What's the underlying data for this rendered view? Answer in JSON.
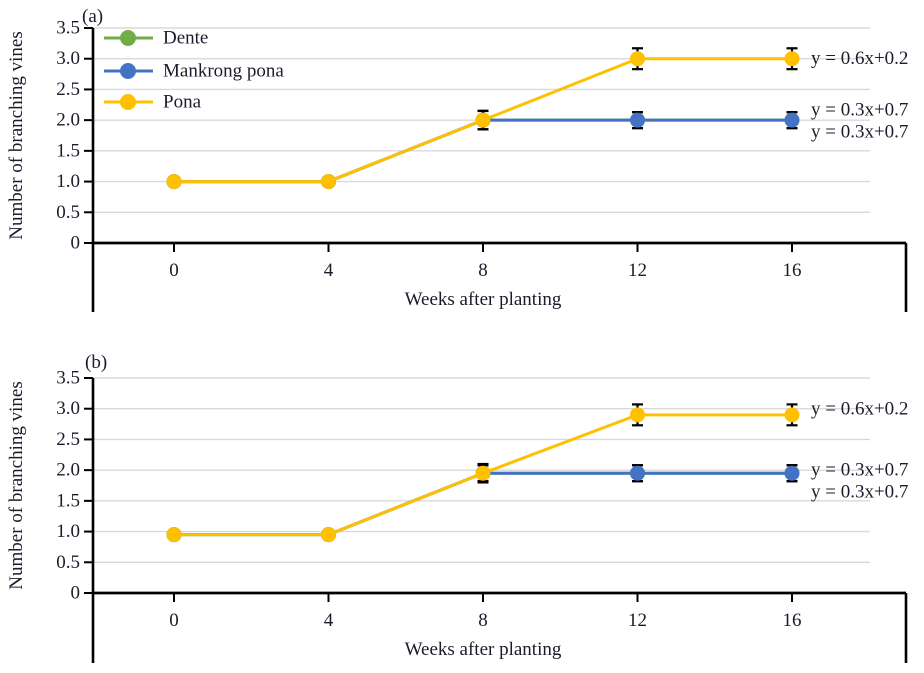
{
  "colors": {
    "dente": "#70AD47",
    "mankrong_pona": "#4472C4",
    "pona": "#FFC000",
    "grid": "#D9D9D9",
    "axis": "#000000",
    "error_bar": "#000000",
    "text": "#1B1B2B"
  },
  "legend": {
    "items": [
      {
        "label": "Dente",
        "color": "#70AD47"
      },
      {
        "label": "Mankrong pona",
        "color": "#4472C4"
      },
      {
        "label": "Pona",
        "color": "#FFC000"
      }
    ]
  },
  "chart_data": [
    {
      "type": "line",
      "panel_label": "(a)",
      "x": [
        0,
        4,
        8,
        12,
        16
      ],
      "x_tick_labels": [
        "0",
        "4",
        "8",
        "12",
        "16"
      ],
      "xlabel": "Weeks after planting",
      "ylabel": "Number of branching vines",
      "ylim": [
        0,
        3.5
      ],
      "y_tick_step": 0.5,
      "y_tick_labels": [
        "0",
        "0.5",
        "1.0",
        "1.5",
        "2.0",
        "2.5",
        "3.0",
        "3.5"
      ],
      "grid": true,
      "legend_position": "inside-top-left",
      "show_legend": true,
      "series": [
        {
          "name": "Dente",
          "color": "#70AD47",
          "values": [
            1.0,
            1.0,
            2.0,
            2.0,
            2.0
          ],
          "errors": [
            0,
            0,
            0.15,
            0.13,
            0.13
          ]
        },
        {
          "name": "Mankrong pona",
          "color": "#4472C4",
          "values": [
            1.0,
            1.0,
            2.0,
            2.0,
            2.0
          ],
          "errors": [
            0,
            0,
            0.15,
            0.13,
            0.13
          ]
        },
        {
          "name": "Pona",
          "color": "#FFC000",
          "values": [
            1.0,
            1.0,
            2.0,
            3.0,
            3.0
          ],
          "errors": [
            0,
            0,
            0.15,
            0.17,
            0.17
          ]
        }
      ],
      "annotations": [
        {
          "text": "y = 0.6x+0.2",
          "value": 3.0,
          "dy": 0
        },
        {
          "text": "y = 0.3x+0.7",
          "value": 2.0,
          "dy": -10
        },
        {
          "text": "y = 0.3x+0.7",
          "value": 2.0,
          "dy": 12
        }
      ]
    },
    {
      "type": "line",
      "panel_label": "(b)",
      "x": [
        0,
        4,
        8,
        12,
        16
      ],
      "x_tick_labels": [
        "0",
        "4",
        "8",
        "12",
        "16"
      ],
      "xlabel": "Weeks after planting",
      "ylabel": "Number of branching vines",
      "ylim": [
        0,
        3.5
      ],
      "y_tick_step": 0.5,
      "y_tick_labels": [
        "0",
        "0.5",
        "1.0",
        "1.5",
        "2.0",
        "2.5",
        "3.0",
        "3.5"
      ],
      "grid": true,
      "show_legend": false,
      "series": [
        {
          "name": "Dente",
          "color": "#70AD47",
          "values": [
            0.95,
            0.95,
            1.95,
            1.95,
            1.95
          ],
          "errors": [
            0,
            0,
            0.13,
            0.13,
            0.13
          ]
        },
        {
          "name": "Mankrong pona",
          "color": "#4472C4",
          "values": [
            0.95,
            0.95,
            1.95,
            1.95,
            1.95
          ],
          "errors": [
            0,
            0,
            0.13,
            0.13,
            0.13
          ]
        },
        {
          "name": "Pona",
          "color": "#FFC000",
          "values": [
            0.95,
            0.95,
            1.95,
            2.9,
            2.9
          ],
          "errors": [
            0,
            0,
            0.15,
            0.17,
            0.17
          ]
        }
      ],
      "annotations": [
        {
          "text": "y = 0.6x+0.2",
          "value": 2.9,
          "dy": -6
        },
        {
          "text": "y = 0.3x+0.7",
          "value": 1.95,
          "dy": -3
        },
        {
          "text": "y = 0.3x+0.7",
          "value": 1.95,
          "dy": 19
        }
      ]
    }
  ]
}
